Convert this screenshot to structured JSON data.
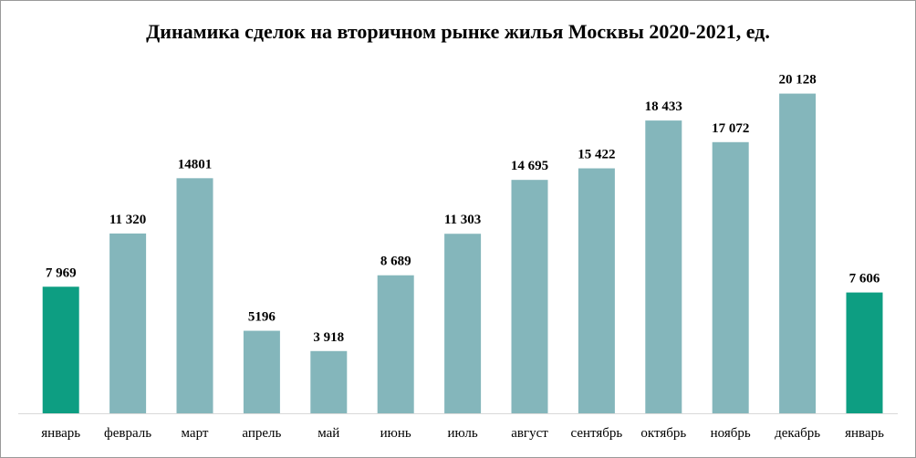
{
  "chart_data": {
    "type": "bar",
    "title": "Динамика сделок на вторичном рынке жилья Москвы 2020-2021, ед.",
    "categories": [
      "январь",
      "февраль",
      "март",
      "апрель",
      "май",
      "июнь",
      "июль",
      "август",
      "сентябрь",
      "октябрь",
      "ноябрь",
      "декабрь",
      "январь"
    ],
    "values": [
      7969,
      11320,
      14801,
      5196,
      3918,
      8689,
      11303,
      14695,
      15422,
      18433,
      17072,
      20128,
      7606
    ],
    "value_labels": [
      "7 969",
      "11 320",
      "14801",
      "5196",
      "3 918",
      "8 689",
      "11 303",
      "14 695",
      "15 422",
      "18 433",
      "17 072",
      "20 128",
      "7 606"
    ],
    "highlight": [
      true,
      false,
      false,
      false,
      false,
      false,
      false,
      false,
      false,
      false,
      false,
      false,
      true
    ],
    "xlabel": "",
    "ylabel": "",
    "ylim": [
      0,
      22000
    ],
    "grid": false,
    "legend": "none",
    "colors": {
      "bar": "#84b6bb",
      "highlight": "#0d9e82",
      "axis": "#d9d9d9"
    }
  }
}
